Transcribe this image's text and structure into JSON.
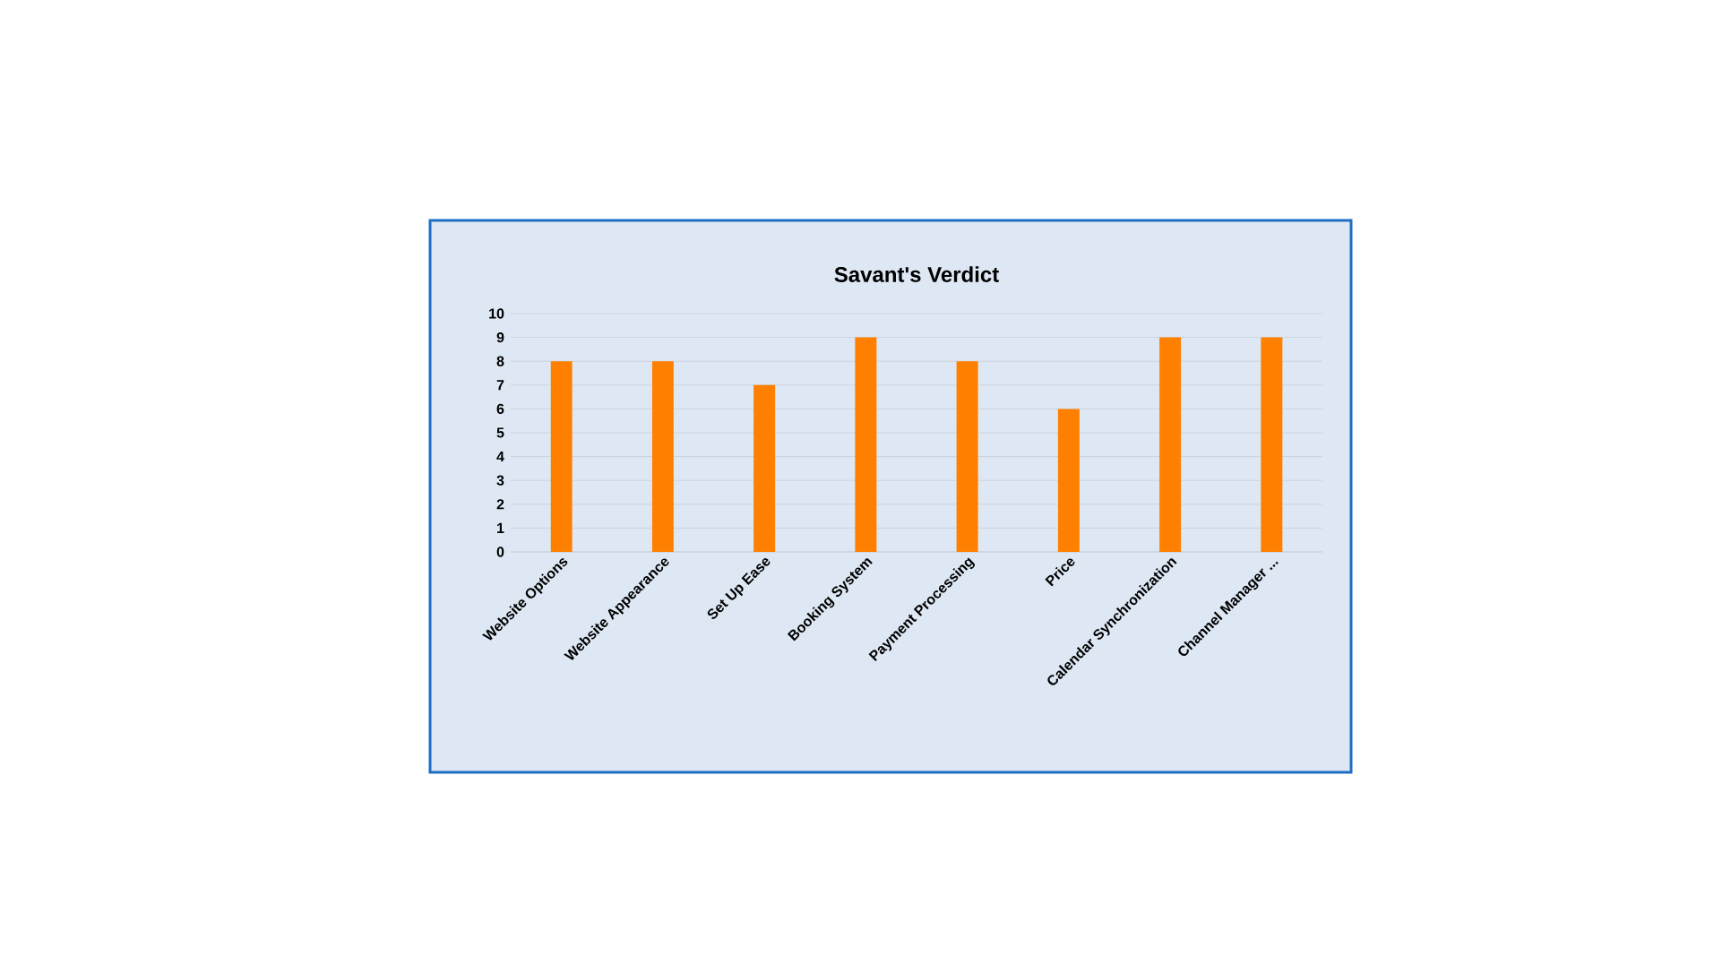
{
  "chart_data": {
    "type": "bar",
    "title": "Savant's Verdict",
    "categories": [
      "Website Options",
      "Website Appearance",
      "Set Up Ease",
      "Booking System",
      "Payment Processing",
      "Price",
      "Calendar Synchronization",
      "Channel Manager ..."
    ],
    "values": [
      8,
      8,
      7,
      9,
      8,
      6,
      9,
      9
    ],
    "color": "#ff8000",
    "ylim": [
      0,
      10
    ],
    "yticks": [
      0,
      1,
      2,
      3,
      4,
      5,
      6,
      7,
      8,
      9,
      10
    ],
    "grid": "y"
  }
}
